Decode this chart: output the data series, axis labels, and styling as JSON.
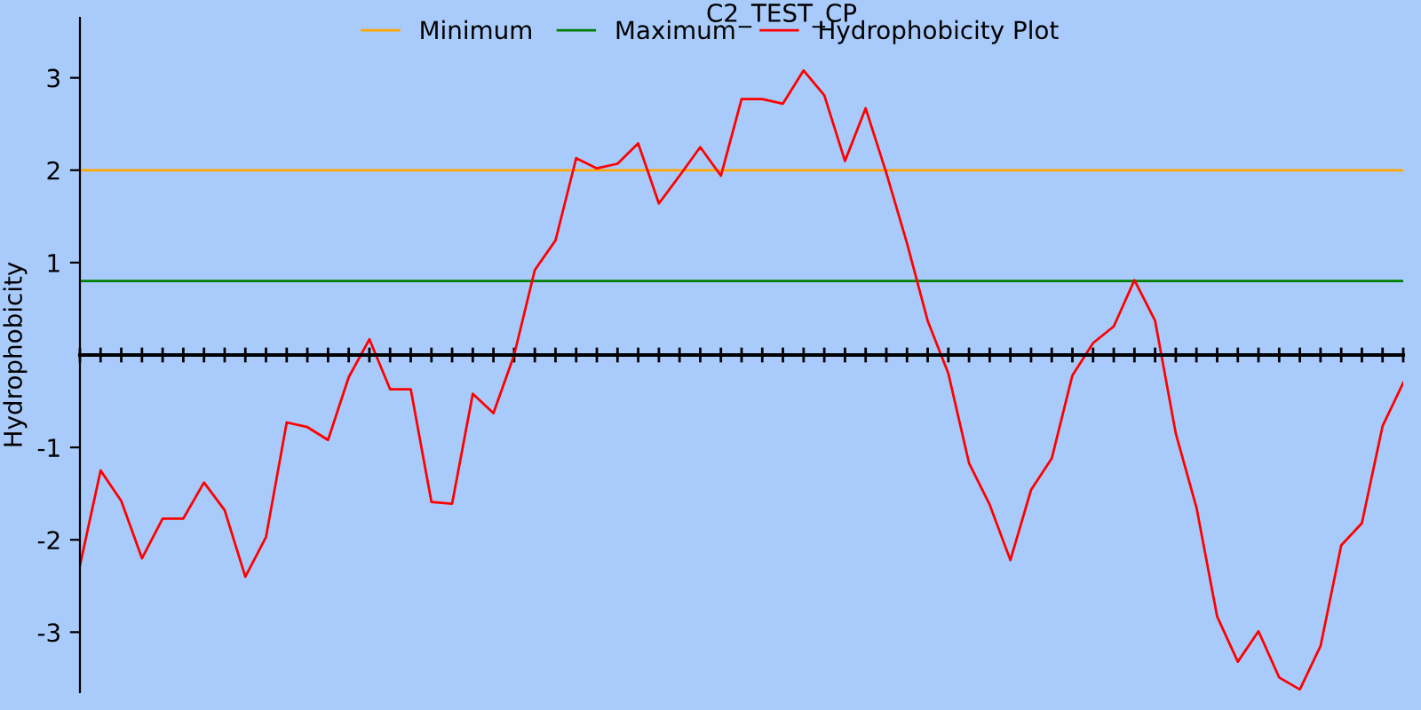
{
  "chart_data": {
    "type": "line",
    "title": "C2_TEST_CP",
    "ylabel": "Hydrophobicity",
    "categories": [
      null,
      null,
      null,
      null,
      null,
      null,
      null,
      null,
      null,
      null,
      null,
      null,
      null,
      null,
      null,
      null,
      null,
      null,
      null,
      null,
      null,
      null,
      null,
      null,
      null,
      null,
      null,
      null,
      null,
      null,
      null,
      null,
      null,
      null,
      null,
      null,
      null,
      null,
      null,
      null,
      null,
      null,
      null,
      null,
      null,
      null,
      null,
      null,
      null,
      null,
      null,
      null,
      null,
      null,
      null,
      null,
      null,
      null,
      null,
      null,
      null,
      null,
      null,
      null,
      null
    ],
    "series": [
      {
        "name": "Minimum",
        "color": "#ffa500",
        "values": [
          2,
          2,
          2,
          2,
          2,
          2,
          2,
          2,
          2,
          2,
          2,
          2,
          2,
          2,
          2,
          2,
          2,
          2,
          2,
          2,
          2,
          2,
          2,
          2,
          2,
          2,
          2,
          2,
          2,
          2,
          2,
          2,
          2,
          2,
          2,
          2,
          2,
          2,
          2,
          2,
          2,
          2,
          2,
          2,
          2,
          2,
          2,
          2,
          2,
          2,
          2,
          2,
          2,
          2,
          2,
          2,
          2,
          2,
          2,
          2,
          2,
          2,
          2,
          2,
          2
        ]
      },
      {
        "name": "Maximum",
        "color": "#008000",
        "values": [
          0.8,
          0.8,
          0.8,
          0.8,
          0.8,
          0.8,
          0.8,
          0.8,
          0.8,
          0.8,
          0.8,
          0.8,
          0.8,
          0.8,
          0.8,
          0.8,
          0.8,
          0.8,
          0.8,
          0.8,
          0.8,
          0.8,
          0.8,
          0.8,
          0.8,
          0.8,
          0.8,
          0.8,
          0.8,
          0.8,
          0.8,
          0.8,
          0.8,
          0.8,
          0.8,
          0.8,
          0.8,
          0.8,
          0.8,
          0.8,
          0.8,
          0.8,
          0.8,
          0.8,
          0.8,
          0.8,
          0.8,
          0.8,
          0.8,
          0.8,
          0.8,
          0.8,
          0.8,
          0.8,
          0.8,
          0.8,
          0.8,
          0.8,
          0.8,
          0.8,
          0.8,
          0.8,
          0.8,
          0.8,
          0.8
        ]
      },
      {
        "name": "Hydrophobicity Plot",
        "color": "#ff0000",
        "values": [
          -2.28,
          -1.25,
          -1.58,
          -2.2,
          -1.77,
          -1.77,
          -1.38,
          -1.68,
          -2.4,
          -1.97,
          -0.73,
          -0.78,
          -0.92,
          -0.24,
          0.17,
          -0.37,
          -0.37,
          -1.59,
          -1.61,
          -0.42,
          -0.63,
          0.0,
          0.92,
          1.24,
          2.13,
          2.02,
          2.07,
          2.29,
          1.64,
          1.94,
          2.25,
          1.94,
          2.77,
          2.77,
          2.72,
          3.08,
          2.81,
          2.1,
          2.67,
          1.97,
          1.21,
          0.37,
          -0.2,
          -1.17,
          -1.62,
          -2.22,
          -1.46,
          -1.12,
          -0.22,
          0.13,
          0.31,
          0.81,
          0.37,
          -0.85,
          -1.65,
          -2.83,
          -3.32,
          -2.99,
          -3.49,
          -3.62,
          -3.15,
          -2.06,
          -1.82,
          -0.77,
          -0.3
        ]
      }
    ],
    "ylim": [
      -3.65,
      3.65
    ],
    "yticks": [
      -3,
      -2,
      -1,
      1,
      2,
      3
    ],
    "tick_labels": "y",
    "grid": false,
    "legend": "top",
    "marker": "none",
    "line_style": "solid"
  }
}
